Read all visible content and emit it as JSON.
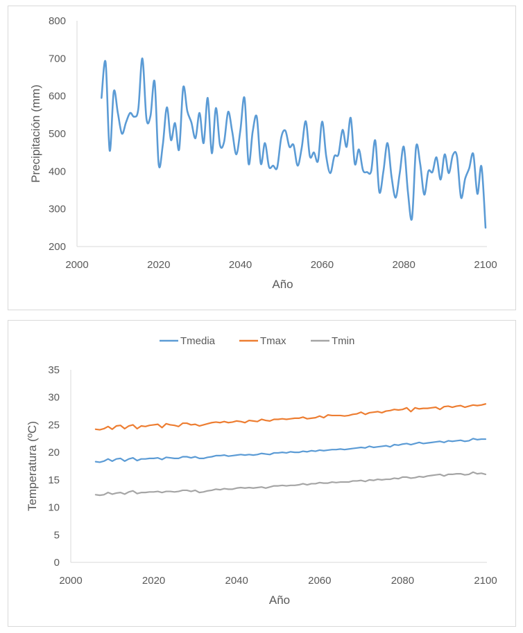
{
  "chart_data": [
    {
      "type": "line",
      "title": "",
      "xlabel": "Año",
      "ylabel": "Precipitación (mm)",
      "xlim": [
        2000,
        2100
      ],
      "ylim": [
        200,
        800
      ],
      "xticks": [
        2000,
        2020,
        2040,
        2060,
        2080,
        2100
      ],
      "yticks": [
        200,
        300,
        400,
        500,
        600,
        700,
        800
      ],
      "grid": false,
      "legend": "none",
      "smooth": true,
      "series": [
        {
          "name": "Precipitación",
          "color": "#5b9bd5",
          "x": [
            2006,
            2007,
            2008,
            2009,
            2010,
            2011,
            2012,
            2013,
            2014,
            2015,
            2016,
            2017,
            2018,
            2019,
            2020,
            2021,
            2022,
            2023,
            2024,
            2025,
            2026,
            2027,
            2028,
            2029,
            2030,
            2031,
            2032,
            2033,
            2034,
            2035,
            2036,
            2037,
            2038,
            2039,
            2040,
            2041,
            2042,
            2043,
            2044,
            2045,
            2046,
            2047,
            2048,
            2049,
            2050,
            2051,
            2052,
            2053,
            2054,
            2055,
            2056,
            2057,
            2058,
            2059,
            2060,
            2061,
            2062,
            2063,
            2064,
            2065,
            2066,
            2067,
            2068,
            2069,
            2070,
            2071,
            2072,
            2073,
            2074,
            2075,
            2076,
            2077,
            2078,
            2079,
            2080,
            2081,
            2082,
            2083,
            2084,
            2085,
            2086,
            2087,
            2088,
            2089,
            2090,
            2091,
            2092,
            2093,
            2094,
            2095,
            2096,
            2097,
            2098,
            2099,
            2100
          ],
          "values": [
            595,
            690,
            455,
            612,
            555,
            500,
            530,
            555,
            545,
            565,
            700,
            540,
            548,
            638,
            418,
            470,
            570,
            483,
            528,
            458,
            623,
            560,
            530,
            488,
            555,
            475,
            595,
            448,
            568,
            470,
            478,
            558,
            505,
            445,
            510,
            595,
            420,
            505,
            545,
            420,
            475,
            412,
            415,
            410,
            490,
            508,
            465,
            470,
            415,
            462,
            533,
            440,
            450,
            428,
            532,
            440,
            395,
            440,
            445,
            510,
            465,
            542,
            420,
            458,
            403,
            398,
            400,
            482,
            345,
            400,
            475,
            385,
            330,
            395,
            465,
            345,
            275,
            465,
            420,
            338,
            400,
            398,
            437,
            378,
            445,
            395,
            443,
            440,
            330,
            380,
            408,
            446,
            340,
            413,
            250
          ]
        }
      ]
    },
    {
      "type": "line",
      "title": "",
      "xlabel": "Año",
      "ylabel": "Temperatura (ºC)",
      "xlim": [
        2000,
        2100
      ],
      "ylim": [
        0,
        35
      ],
      "xticks": [
        2000,
        2020,
        2040,
        2060,
        2080,
        2100
      ],
      "yticks": [
        0,
        5,
        10,
        15,
        20,
        25,
        30,
        35
      ],
      "grid": false,
      "legend": "top",
      "smooth": false,
      "x": [
        2006,
        2007,
        2008,
        2009,
        2010,
        2011,
        2012,
        2013,
        2014,
        2015,
        2016,
        2017,
        2018,
        2019,
        2020,
        2021,
        2022,
        2023,
        2024,
        2025,
        2026,
        2027,
        2028,
        2029,
        2030,
        2031,
        2032,
        2033,
        2034,
        2035,
        2036,
        2037,
        2038,
        2039,
        2040,
        2041,
        2042,
        2043,
        2044,
        2045,
        2046,
        2047,
        2048,
        2049,
        2050,
        2051,
        2052,
        2053,
        2054,
        2055,
        2056,
        2057,
        2058,
        2059,
        2060,
        2061,
        2062,
        2063,
        2064,
        2065,
        2066,
        2067,
        2068,
        2069,
        2070,
        2071,
        2072,
        2073,
        2074,
        2075,
        2076,
        2077,
        2078,
        2079,
        2080,
        2081,
        2082,
        2083,
        2084,
        2085,
        2086,
        2087,
        2088,
        2089,
        2090,
        2091,
        2092,
        2093,
        2094,
        2095,
        2096,
        2097,
        2098,
        2099,
        2100
      ],
      "series": [
        {
          "name": "Tmedia",
          "color": "#5b9bd5",
          "values": [
            18.3,
            18.2,
            18.4,
            18.8,
            18.4,
            18.8,
            18.9,
            18.4,
            18.8,
            19.0,
            18.5,
            18.8,
            18.8,
            18.9,
            18.9,
            19.0,
            18.7,
            19.1,
            19.0,
            18.9,
            18.9,
            19.2,
            19.2,
            19.0,
            19.2,
            18.9,
            18.9,
            19.1,
            19.2,
            19.4,
            19.4,
            19.5,
            19.3,
            19.4,
            19.5,
            19.6,
            19.5,
            19.6,
            19.5,
            19.6,
            19.8,
            19.7,
            19.6,
            19.9,
            19.9,
            20.0,
            19.9,
            20.1,
            20.0,
            20.0,
            20.2,
            20.1,
            20.3,
            20.2,
            20.4,
            20.3,
            20.4,
            20.5,
            20.5,
            20.6,
            20.5,
            20.6,
            20.7,
            20.8,
            20.9,
            20.8,
            21.1,
            20.9,
            21.0,
            21.1,
            21.2,
            21.0,
            21.4,
            21.3,
            21.5,
            21.6,
            21.4,
            21.6,
            21.8,
            21.6,
            21.7,
            21.8,
            21.9,
            22.0,
            21.8,
            22.1,
            22.0,
            22.1,
            22.2,
            22.0,
            22.1,
            22.5,
            22.3,
            22.4,
            22.4
          ]
        },
        {
          "name": "Tmax",
          "color": "#ed7d31",
          "values": [
            24.2,
            24.1,
            24.3,
            24.7,
            24.2,
            24.8,
            24.9,
            24.3,
            24.8,
            25.0,
            24.3,
            24.8,
            24.7,
            24.9,
            25.0,
            25.1,
            24.5,
            25.2,
            25.0,
            24.9,
            24.7,
            25.3,
            25.3,
            25.0,
            25.1,
            24.8,
            25.0,
            25.2,
            25.4,
            25.5,
            25.4,
            25.6,
            25.4,
            25.5,
            25.7,
            25.6,
            25.4,
            25.8,
            25.7,
            25.6,
            26.0,
            25.8,
            25.7,
            26.0,
            26.0,
            26.1,
            26.0,
            26.1,
            26.2,
            26.2,
            26.4,
            26.1,
            26.2,
            26.3,
            26.6,
            26.3,
            26.8,
            26.7,
            26.7,
            26.7,
            26.6,
            26.7,
            26.9,
            27.0,
            27.3,
            26.9,
            27.2,
            27.3,
            27.4,
            27.2,
            27.5,
            27.6,
            27.8,
            27.7,
            27.8,
            28.1,
            27.4,
            28.1,
            27.9,
            28.0,
            28.0,
            28.1,
            28.2,
            27.8,
            28.3,
            28.4,
            28.2,
            28.4,
            28.5,
            28.2,
            28.4,
            28.6,
            28.5,
            28.6,
            28.8
          ]
        },
        {
          "name": "Tmin",
          "color": "#a5a5a5",
          "values": [
            12.3,
            12.2,
            12.3,
            12.7,
            12.4,
            12.6,
            12.7,
            12.4,
            12.8,
            13.0,
            12.5,
            12.7,
            12.7,
            12.8,
            12.8,
            12.9,
            12.7,
            12.9,
            12.9,
            12.8,
            12.9,
            13.1,
            13.1,
            12.9,
            13.1,
            12.7,
            12.8,
            13.0,
            13.1,
            13.3,
            13.2,
            13.4,
            13.3,
            13.3,
            13.5,
            13.6,
            13.5,
            13.6,
            13.5,
            13.6,
            13.7,
            13.5,
            13.7,
            13.9,
            13.9,
            14.0,
            13.9,
            14.0,
            14.0,
            14.1,
            14.3,
            14.1,
            14.3,
            14.3,
            14.5,
            14.4,
            14.4,
            14.6,
            14.5,
            14.6,
            14.6,
            14.6,
            14.8,
            14.8,
            14.9,
            14.7,
            15.0,
            14.9,
            15.1,
            15.0,
            15.1,
            15.1,
            15.3,
            15.2,
            15.5,
            15.5,
            15.3,
            15.4,
            15.6,
            15.5,
            15.7,
            15.8,
            15.9,
            16.0,
            15.7,
            16.0,
            16.0,
            16.1,
            16.1,
            15.9,
            16.0,
            16.4,
            16.1,
            16.2,
            16.0
          ]
        }
      ]
    }
  ]
}
